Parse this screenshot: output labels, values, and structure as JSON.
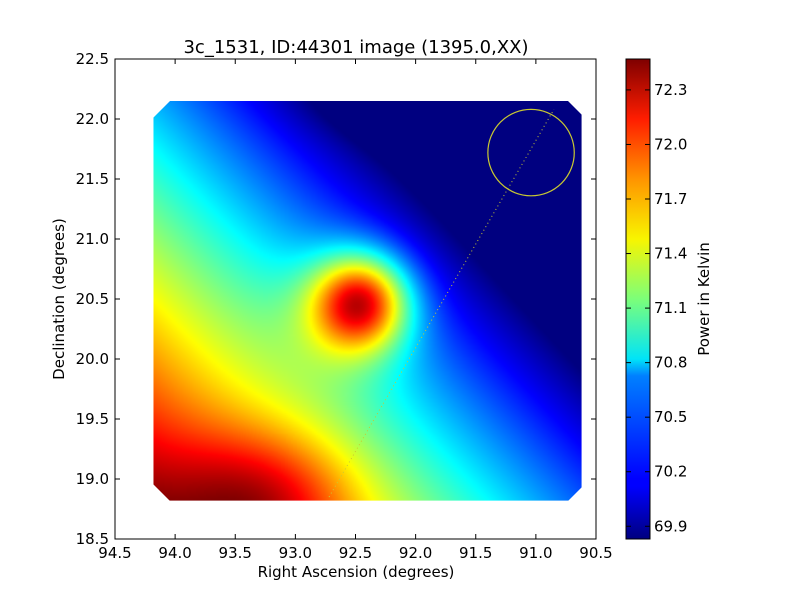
{
  "chart_data": {
    "type": "heatmap",
    "title": "3c_1531, ID:44301 image (1395.0,XX)",
    "xlabel": "Right Ascension (degrees)",
    "ylabel": "Declination (degrees)",
    "xlim": [
      94.5,
      90.5
    ],
    "ylim": [
      18.5,
      22.5
    ],
    "x_reversed": true,
    "xticks": [
      "94.5",
      "94.0",
      "93.5",
      "93.0",
      "92.5",
      "92.0",
      "91.5",
      "91.0",
      "90.5"
    ],
    "xtick_values": [
      94.5,
      94.0,
      93.5,
      93.0,
      92.5,
      92.0,
      91.5,
      91.0,
      90.5
    ],
    "yticks": [
      "18.5",
      "19.0",
      "19.5",
      "20.0",
      "20.5",
      "21.0",
      "21.5",
      "22.0",
      "22.5"
    ],
    "ytick_values": [
      18.5,
      19.0,
      19.5,
      20.0,
      20.5,
      21.0,
      21.5,
      22.0,
      22.5
    ],
    "image_extent": {
      "ra": [
        94.18,
        90.62
      ],
      "dec": [
        18.82,
        22.15
      ]
    },
    "colormap": "jet",
    "colorbar": {
      "label": "Power in Kelvin",
      "range": [
        69.83,
        72.47
      ],
      "ticks": [
        "72.3",
        "72.0",
        "71.7",
        "71.4",
        "71.1",
        "70.8",
        "70.5",
        "70.2",
        "69.9"
      ],
      "tick_values": [
        72.3,
        72.0,
        71.7,
        71.4,
        71.1,
        70.8,
        70.5,
        70.2,
        69.9
      ]
    },
    "field_features": [
      {
        "kind": "peak",
        "ra": 92.45,
        "dec": 20.47,
        "value": 72.45
      },
      {
        "kind": "warm-region",
        "ra": 93.2,
        "dec": 18.95,
        "value": 71.75
      },
      {
        "kind": "cold-region",
        "ra": 91.3,
        "dec": 22.15,
        "value": 69.9
      }
    ],
    "annotations": {
      "circle": {
        "ra": 91.04,
        "dec": 21.72,
        "radius_deg": 0.36,
        "color": "#c8c832"
      },
      "dotted_line": {
        "from": {
          "ra": 92.72,
          "dec": 18.85
        },
        "to": {
          "ra": 90.85,
          "dec": 22.08
        },
        "color": "#c8c832"
      }
    },
    "grid": false,
    "legend": "none"
  }
}
